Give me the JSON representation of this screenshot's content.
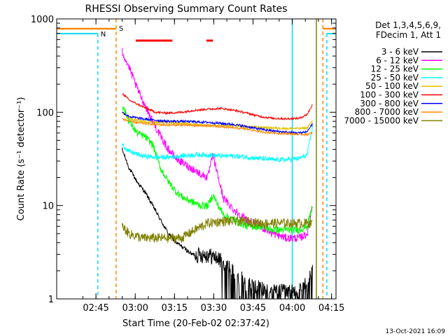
{
  "chart_data": {
    "type": "line",
    "title": "RHESSI Observing Summary Count Rates",
    "xlabel": "Start Time (20-Feb-02 02:37:42)",
    "ylabel": "Count Rate (s⁻¹ detector⁻¹)",
    "yscale": "log",
    "ylim": [
      1,
      1000
    ],
    "xlim_minutes": [
      -7.7,
      99
    ],
    "xticks": [
      {
        "label": "02:45",
        "t": 7.3
      },
      {
        "label": "03:00",
        "t": 22.3
      },
      {
        "label": "03:15",
        "t": 37.3
      },
      {
        "label": "03:30",
        "t": 52.3
      },
      {
        "label": "03:45",
        "t": 67.3
      },
      {
        "label": "04:00",
        "t": 82.3
      },
      {
        "label": "04:15",
        "t": 97.3
      }
    ],
    "yticks": [
      {
        "label": "1",
        "v": 1
      },
      {
        "label": "10",
        "v": 10
      },
      {
        "label": "100",
        "v": 100
      },
      {
        "label": "1000",
        "v": 1000
      }
    ],
    "legend": {
      "header": [
        "Det 1,3,4,5,6,9,",
        "FDecim 1, Att 1"
      ],
      "placement": "right"
    },
    "annotations": {
      "s_label": "S",
      "n_label": "N",
      "s_color": "#ff8800",
      "n_color": "#00ddff",
      "flare_color": "#ff0000"
    },
    "series": [
      {
        "name": "3 - 6 keV",
        "color": "#000000",
        "t": [
          17.3,
          20,
          23,
          26,
          29,
          32,
          35,
          38,
          41,
          44,
          47,
          50,
          53,
          56,
          60,
          65,
          70,
          75,
          80,
          85,
          88,
          90
        ],
        "values": [
          40,
          25,
          18,
          14,
          10,
          7,
          5,
          4,
          3.5,
          3,
          3,
          3,
          2.8,
          2.5,
          2,
          1.5,
          1.3,
          1.2,
          1.2,
          1.2,
          1.5,
          2
        ]
      },
      {
        "name": "6 - 12 keV",
        "color": "#ff00ff",
        "t": [
          17.3,
          20,
          23,
          26,
          29,
          32,
          35,
          38,
          41,
          44,
          47,
          50,
          52,
          54,
          56,
          60,
          65,
          70,
          75,
          80,
          85,
          88,
          90
        ],
        "values": [
          450,
          300,
          180,
          120,
          80,
          55,
          40,
          32,
          28,
          25,
          22,
          20,
          35,
          20,
          12,
          9,
          7,
          6,
          5,
          4.5,
          4.5,
          5,
          10
        ]
      },
      {
        "name": "12 - 25 keV",
        "color": "#00ff00",
        "t": [
          17.3,
          20,
          23,
          26,
          29,
          32,
          35,
          38,
          41,
          44,
          47,
          50,
          52,
          54,
          56,
          60,
          65,
          70,
          75,
          80,
          85,
          88,
          90
        ],
        "values": [
          120,
          80,
          60,
          55,
          45,
          25,
          18,
          14,
          12,
          11,
          10,
          10,
          13,
          10,
          8,
          7,
          6,
          6,
          5.5,
          5.5,
          5.5,
          6,
          10
        ]
      },
      {
        "name": "25 - 50 keV",
        "color": "#00ffff",
        "t": [
          17.3,
          20,
          25,
          30,
          35,
          40,
          45,
          50,
          55,
          60,
          65,
          70,
          75,
          80,
          85,
          88,
          90
        ],
        "values": [
          45,
          38,
          34,
          33,
          33,
          34,
          35,
          35,
          34,
          34,
          33,
          32,
          31,
          31,
          32,
          35,
          70
        ]
      },
      {
        "name": "50 - 100 keV",
        "color": "#e0c000",
        "t": [
          17.3,
          20,
          25,
          30,
          35,
          40,
          45,
          50,
          55,
          60,
          65,
          70,
          75,
          80,
          85,
          88,
          90
        ],
        "values": [
          100,
          85,
          80,
          78,
          78,
          76,
          74,
          72,
          72,
          72,
          70,
          69,
          68,
          67,
          67,
          68,
          80
        ]
      },
      {
        "name": "100 - 300 keV",
        "color": "#ff0000",
        "t": [
          17.3,
          20,
          25,
          30,
          35,
          40,
          45,
          50,
          55,
          60,
          65,
          70,
          75,
          80,
          85,
          88,
          90
        ],
        "values": [
          160,
          135,
          115,
          100,
          98,
          100,
          105,
          108,
          110,
          105,
          98,
          90,
          86,
          85,
          86,
          95,
          120
        ]
      },
      {
        "name": "300 - 800 keV",
        "color": "#0000ff",
        "t": [
          17.3,
          20,
          25,
          30,
          35,
          40,
          45,
          50,
          55,
          60,
          65,
          70,
          75,
          80,
          85,
          88,
          90
        ],
        "values": [
          100,
          90,
          85,
          82,
          80,
          80,
          79,
          78,
          76,
          74,
          70,
          66,
          63,
          61,
          60,
          62,
          75
        ]
      },
      {
        "name": "800 - 7000 keV",
        "color": "#ff8800",
        "t": [
          17.3,
          20,
          25,
          30,
          35,
          40,
          45,
          50,
          55,
          60,
          65,
          70,
          75,
          80,
          85,
          88,
          90
        ],
        "values": [
          85,
          80,
          76,
          74,
          73,
          73,
          72,
          72,
          70,
          68,
          66,
          62,
          60,
          59,
          58,
          58,
          60
        ]
      },
      {
        "name": "7000 - 15000 keV",
        "color": "#808000",
        "t": [
          17.3,
          20,
          25,
          30,
          35,
          40,
          45,
          50,
          55,
          60,
          65,
          70,
          75,
          80,
          85,
          88,
          90
        ],
        "values": [
          6,
          5,
          4.5,
          4.5,
          4.5,
          4.5,
          5.5,
          6.5,
          6.8,
          6.8,
          6.8,
          6.5,
          6.5,
          6.5,
          6.5,
          6.5,
          6.5
        ]
      }
    ]
  },
  "footer": {
    "timestamp": "13-Oct-2021 16:09"
  }
}
